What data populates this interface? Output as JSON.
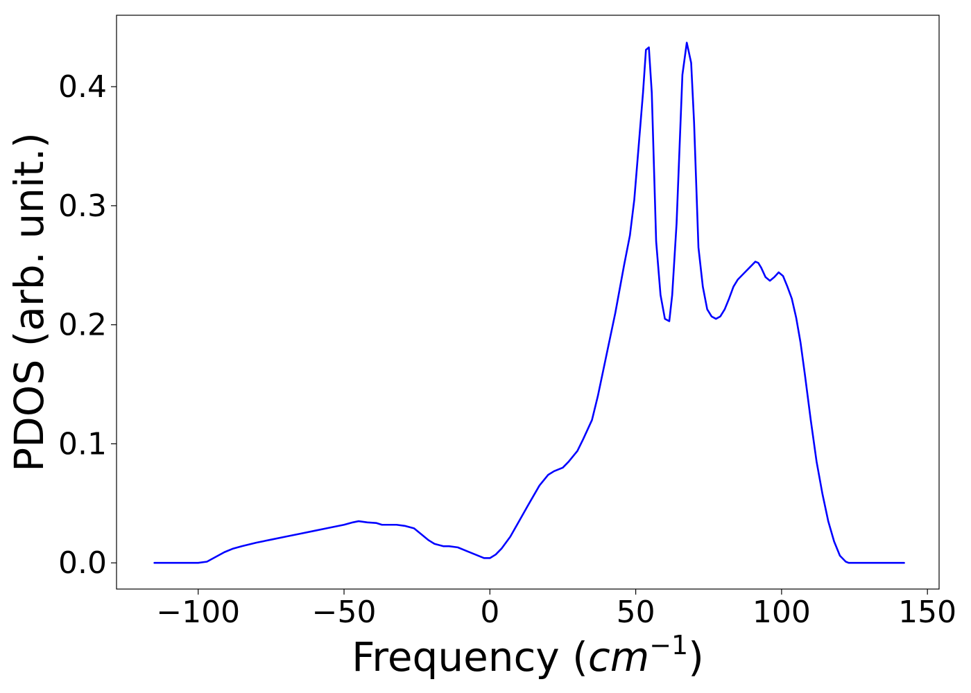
{
  "chart_data": {
    "type": "line",
    "title": "",
    "xlabel": "Frequency",
    "xlabel_unit_base": "cm",
    "xlabel_unit_exp": "−1",
    "ylabel": "PDOS (arb. unit.)",
    "xlim": [
      -128,
      154
    ],
    "ylim": [
      -0.022,
      0.46
    ],
    "xticks": [
      -100,
      -50,
      0,
      50,
      100,
      150
    ],
    "xtick_labels": [
      "−100",
      "−50",
      "0",
      "50",
      "100",
      "150"
    ],
    "yticks": [
      0.0,
      0.1,
      0.2,
      0.3,
      0.4
    ],
    "ytick_labels": [
      "0.0",
      "0.1",
      "0.2",
      "0.3",
      "0.4"
    ],
    "grid": false,
    "line_color": "#0000ff",
    "series": [
      {
        "x": [
          -115,
          -100,
          -97,
          -94,
          -91,
          -88,
          -85,
          -80,
          -75,
          -70,
          -65,
          -60,
          -55,
          -50,
          -47,
          -45,
          -42,
          -39,
          -37,
          -35,
          -32,
          -29,
          -26,
          -24,
          -21,
          -19,
          -16,
          -14,
          -11,
          -8,
          -5,
          -2,
          0,
          2,
          4,
          7,
          10,
          13,
          17,
          20,
          22,
          25,
          27,
          30,
          32,
          35,
          37,
          40,
          43,
          46,
          48,
          49.5,
          51,
          52.5,
          53.5,
          54.5,
          55.5,
          57,
          58.5,
          60,
          61.5,
          62.5,
          64,
          66,
          67.5,
          69,
          70,
          71.5,
          73,
          74.5,
          76,
          77.5,
          79,
          80.5,
          82,
          83.5,
          85,
          87,
          89,
          91,
          92,
          93,
          94.5,
          96,
          97.5,
          99,
          100.5,
          102,
          103.5,
          105,
          106.5,
          108,
          110,
          112,
          114,
          116,
          118,
          120,
          122,
          123,
          125,
          130,
          142
        ],
        "y": [
          0.0,
          0.0,
          0.001,
          0.005,
          0.009,
          0.012,
          0.014,
          0.017,
          0.0195,
          0.022,
          0.0245,
          0.027,
          0.0295,
          0.032,
          0.034,
          0.035,
          0.034,
          0.0335,
          0.032,
          0.032,
          0.032,
          0.031,
          0.029,
          0.025,
          0.019,
          0.016,
          0.014,
          0.014,
          0.013,
          0.01,
          0.007,
          0.004,
          0.004,
          0.007,
          0.012,
          0.022,
          0.035,
          0.048,
          0.065,
          0.074,
          0.077,
          0.08,
          0.085,
          0.094,
          0.104,
          0.12,
          0.14,
          0.175,
          0.21,
          0.25,
          0.275,
          0.305,
          0.35,
          0.395,
          0.431,
          0.433,
          0.395,
          0.27,
          0.225,
          0.205,
          0.203,
          0.225,
          0.285,
          0.41,
          0.437,
          0.42,
          0.37,
          0.265,
          0.232,
          0.213,
          0.207,
          0.205,
          0.207,
          0.213,
          0.222,
          0.232,
          0.238,
          0.243,
          0.248,
          0.253,
          0.252,
          0.248,
          0.24,
          0.237,
          0.24,
          0.244,
          0.241,
          0.232,
          0.222,
          0.206,
          0.185,
          0.158,
          0.12,
          0.085,
          0.058,
          0.035,
          0.018,
          0.006,
          0.001,
          0.0,
          0.0,
          0.0,
          0.0
        ]
      }
    ]
  }
}
